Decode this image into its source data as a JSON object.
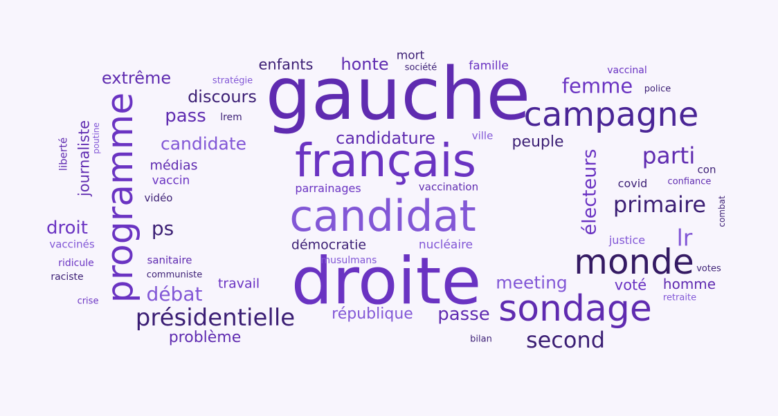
{
  "palette": {
    "background": "#f8f5fd",
    "dark": "#341a63",
    "medium": "#5f2bb0",
    "light": "#8257d6"
  },
  "words": [
    {
      "text": "gauche",
      "color": "#5f2bb0"
    },
    {
      "text": "droite",
      "color": "#6a33c2"
    },
    {
      "text": "français",
      "color": "#6a33c2"
    },
    {
      "text": "candidat",
      "color": "#8257d6"
    },
    {
      "text": "programme",
      "color": "#6a33c2"
    },
    {
      "text": "monde",
      "color": "#341a63"
    },
    {
      "text": "sondage",
      "color": "#5f2bb0"
    },
    {
      "text": "campagne",
      "color": "#4a2596"
    },
    {
      "text": "présidentielle",
      "color": "#3b1e74"
    },
    {
      "text": "second",
      "color": "#3b1e74"
    },
    {
      "text": "primaire",
      "color": "#3b1e74"
    },
    {
      "text": "parti",
      "color": "#5f2bb0"
    },
    {
      "text": "électeurs",
      "color": "#6a33c2"
    },
    {
      "text": "femme",
      "color": "#6a33c2"
    },
    {
      "text": "candidature",
      "color": "#5f2bb0"
    },
    {
      "text": "candidate",
      "color": "#8257d6"
    },
    {
      "text": "journaliste",
      "color": "#5f2bb0"
    },
    {
      "text": "discours",
      "color": "#3b1e74"
    },
    {
      "text": "extrême",
      "color": "#5f2bb0"
    },
    {
      "text": "pass",
      "color": "#5f2bb0"
    },
    {
      "text": "débat",
      "color": "#8257d6"
    },
    {
      "text": "droit",
      "color": "#6a33c2"
    },
    {
      "text": "ps",
      "color": "#3b1e74"
    },
    {
      "text": "lr",
      "color": "#8257d6"
    },
    {
      "text": "meeting",
      "color": "#8257d6"
    },
    {
      "text": "passe",
      "color": "#5f2bb0"
    },
    {
      "text": "république",
      "color": "#8257d6"
    },
    {
      "text": "problème",
      "color": "#5f2bb0"
    },
    {
      "text": "honte",
      "color": "#5f2bb0"
    },
    {
      "text": "enfants",
      "color": "#3b1e74"
    },
    {
      "text": "peuple",
      "color": "#3b1e74"
    },
    {
      "text": "voté",
      "color": "#6a33c2"
    },
    {
      "text": "homme",
      "color": "#5f2bb0"
    },
    {
      "text": "travail",
      "color": "#6a33c2"
    },
    {
      "text": "démocratie",
      "color": "#3b1e74"
    },
    {
      "text": "nucléaire",
      "color": "#8257d6"
    },
    {
      "text": "médias",
      "color": "#5f2bb0"
    },
    {
      "text": "vaccin",
      "color": "#6a33c2"
    },
    {
      "text": "parrainages",
      "color": "#6a33c2"
    },
    {
      "text": "vaccination",
      "color": "#5f2bb0"
    },
    {
      "text": "famille",
      "color": "#6a33c2"
    },
    {
      "text": "justice",
      "color": "#8257d6"
    },
    {
      "text": "covid",
      "color": "#3b1e74"
    },
    {
      "text": "mort",
      "color": "#3b1e74"
    },
    {
      "text": "sanitaire",
      "color": "#5f2bb0"
    },
    {
      "text": "vaccinés",
      "color": "#8257d6"
    },
    {
      "text": "liberté",
      "color": "#5f2bb0"
    },
    {
      "text": "ville",
      "color": "#8257d6"
    },
    {
      "text": "musulmans",
      "color": "#8257d6"
    },
    {
      "text": "vaccinal",
      "color": "#6a33c2"
    },
    {
      "text": "vidéo",
      "color": "#3b1e74"
    },
    {
      "text": "ridicule",
      "color": "#6a33c2"
    },
    {
      "text": "con",
      "color": "#3b1e74"
    },
    {
      "text": "confiance",
      "color": "#5f2bb0"
    },
    {
      "text": "raciste",
      "color": "#3b1e74"
    },
    {
      "text": "communiste",
      "color": "#3b1e74"
    },
    {
      "text": "lrem",
      "color": "#3b1e74"
    },
    {
      "text": "société",
      "color": "#3b1e74"
    },
    {
      "text": "stratégie",
      "color": "#8257d6"
    },
    {
      "text": "police",
      "color": "#3b1e74"
    },
    {
      "text": "poutine",
      "color": "#8257d6"
    },
    {
      "text": "combat",
      "color": "#3b1e74"
    },
    {
      "text": "votes",
      "color": "#3b1e74"
    },
    {
      "text": "retraite",
      "color": "#8257d6"
    },
    {
      "text": "crise",
      "color": "#6a33c2"
    },
    {
      "text": "bilan",
      "color": "#3b1e74"
    }
  ]
}
